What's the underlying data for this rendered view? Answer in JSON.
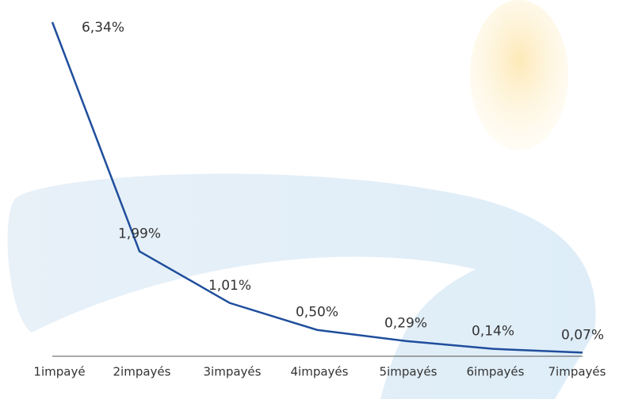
{
  "chart_data": {
    "type": "line",
    "categories": [
      "1impayé",
      "2impayés",
      "3impayés",
      "4impayés",
      "5impayés",
      "6impayés",
      "7impayés"
    ],
    "series": [
      {
        "color": "#1f4e9c",
        "values": [
          6.34,
          1.99,
          1.01,
          0.5,
          0.29,
          0.14,
          0.07
        ],
        "value_labels": [
          "6,34%",
          "1,99%",
          "1,01%",
          "0,50%",
          "0,29%",
          "0,14%",
          "0,07%"
        ]
      }
    ]
  }
}
